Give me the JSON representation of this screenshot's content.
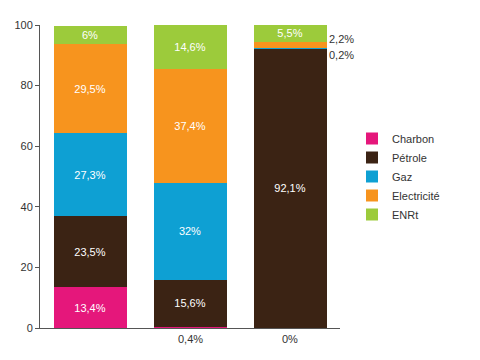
{
  "chart_data": {
    "type": "bar",
    "stacked": true,
    "categories": [
      null,
      null,
      null
    ],
    "ylim": [
      0,
      100
    ],
    "yticks": [
      0,
      20,
      40,
      60,
      80,
      100
    ],
    "grid": false,
    "legend": "right",
    "data_labels": true,
    "tick_labels": "y",
    "series": [
      {
        "name": "Charbon",
        "color": "#e5177b",
        "values": [
          13.4,
          0.4,
          0
        ],
        "value_labels": [
          "13,4%",
          "0,4%",
          "0%"
        ]
      },
      {
        "name": "Pétrole",
        "color": "#3b2314",
        "values": [
          23.5,
          15.6,
          92.1
        ],
        "value_labels": [
          "23,5%",
          "15,6%",
          "92,1%"
        ]
      },
      {
        "name": "Gaz",
        "color": "#0ea0d3",
        "values": [
          27.3,
          32,
          0.2
        ],
        "value_labels": [
          "27,3%",
          "32%",
          "0,2%"
        ]
      },
      {
        "name": "Electricité",
        "color": "#f7941e",
        "values": [
          29.5,
          37.4,
          2.2
        ],
        "value_labels": [
          "29,5%",
          "37,4%",
          "2,2%"
        ]
      },
      {
        "name": "ENRt",
        "color": "#9ccb3b",
        "values": [
          6,
          14.6,
          5.5
        ],
        "value_labels": [
          "6%",
          "14,6%",
          "5,5%"
        ]
      }
    ]
  }
}
